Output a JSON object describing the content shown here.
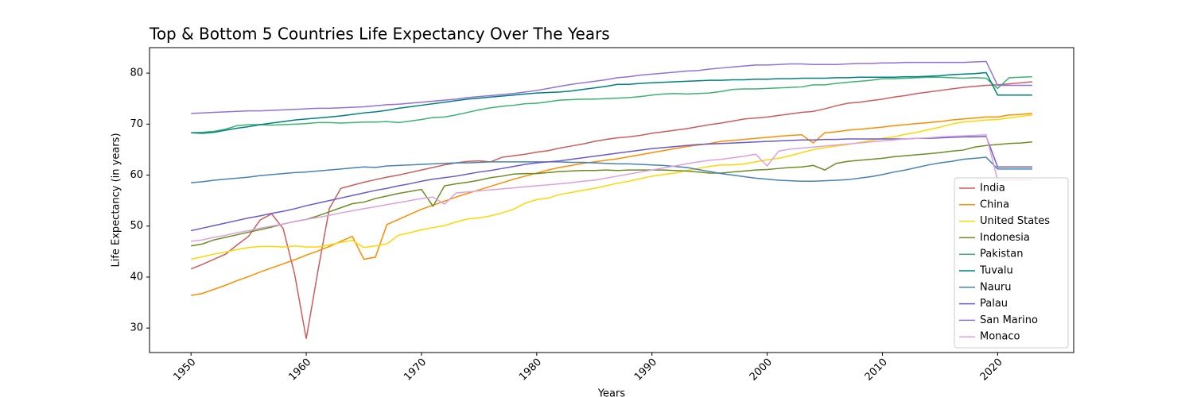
{
  "chart_data": {
    "type": "line",
    "title": "Top & Bottom 5 Countries Life Expectancy Over The Years",
    "x_label": "Years",
    "y_label": "Life Expectancy (in years)",
    "x": [
      1950,
      1951,
      1952,
      1953,
      1954,
      1955,
      1956,
      1957,
      1958,
      1959,
      1960,
      1961,
      1962,
      1963,
      1964,
      1965,
      1966,
      1967,
      1968,
      1969,
      1970,
      1971,
      1972,
      1973,
      1974,
      1975,
      1976,
      1977,
      1978,
      1979,
      1980,
      1981,
      1982,
      1983,
      1984,
      1985,
      1986,
      1987,
      1988,
      1989,
      1990,
      1991,
      1992,
      1993,
      1994,
      1995,
      1996,
      1997,
      1998,
      1999,
      2000,
      2001,
      2002,
      2003,
      2004,
      2005,
      2006,
      2007,
      2008,
      2009,
      2010,
      2011,
      2012,
      2013,
      2014,
      2015,
      2016,
      2017,
      2018,
      2019,
      2020,
      2021,
      2022,
      2023
    ],
    "xlim": [
      1946.4,
      2026.6
    ],
    "xticks": [
      1950,
      1960,
      1970,
      1980,
      1990,
      2000,
      2010,
      2020
    ],
    "ylim": [
      25.2,
      85.0
    ],
    "yticks": [
      30,
      40,
      50,
      60,
      70,
      80
    ],
    "legend_position": "lower right",
    "series": [
      {
        "name": "India",
        "color": "#cd5c5c",
        "values": [
          41.6,
          42.5,
          43.5,
          44.5,
          46.3,
          48,
          51.2,
          52.4,
          49.5,
          40.5,
          27.9,
          41,
          53.4,
          57.4,
          58,
          58.6,
          59.1,
          59.6,
          60,
          60.5,
          61,
          61.5,
          62,
          62.4,
          62.7,
          62.8,
          62.6,
          63.5,
          63.8,
          64.1,
          64.5,
          64.8,
          65.3,
          65.7,
          66.1,
          66.6,
          67,
          67.3,
          67.5,
          67.8,
          68.2,
          68.5,
          68.8,
          69.1,
          69.5,
          69.9,
          70.2,
          70.6,
          71,
          71.2,
          71.4,
          71.7,
          72,
          72.3,
          72.5,
          73,
          73.6,
          74.1,
          74.3,
          74.6,
          74.9,
          75.3,
          75.6,
          76,
          76.3,
          76.6,
          76.9,
          77.2,
          77.4,
          77.6,
          77.7,
          77.9,
          78.1,
          78.3
        ]
      },
      {
        "name": "China",
        "color": "#ff8c00",
        "values": [
          36.4,
          36.8,
          37.6,
          38.4,
          39.3,
          40.1,
          41,
          41.8,
          42.6,
          43.4,
          44.3,
          45.1,
          46,
          47,
          48,
          43.5,
          43.9,
          50.3,
          51.3,
          52.3,
          53.3,
          54.1,
          54.9,
          55.7,
          56.4,
          57.1,
          57.8,
          58.5,
          59.2,
          59.8,
          60.4,
          61,
          61.5,
          61.9,
          62.3,
          62.6,
          62.9,
          63.2,
          63.6,
          64,
          64.4,
          64.8,
          65.2,
          65.6,
          65.9,
          66.2,
          66.6,
          66.8,
          67,
          67.2,
          67.4,
          67.6,
          67.8,
          67.9,
          66.3,
          68.3,
          68.5,
          68.8,
          69,
          69.2,
          69.4,
          69.7,
          69.9,
          70.1,
          70.3,
          70.5,
          70.8,
          71,
          71.2,
          71.4,
          71.4,
          71.8,
          71.9,
          72.1
        ]
      },
      {
        "name": "United States",
        "color": "#ffd700",
        "values": [
          43.5,
          44,
          44.5,
          44.9,
          45.4,
          45.8,
          46,
          46,
          45.9,
          46.1,
          45.9,
          45.9,
          46.3,
          46.8,
          47.2,
          45.8,
          46.1,
          46.5,
          48.2,
          48.7,
          49.3,
          49.7,
          50.1,
          50.8,
          51.4,
          51.6,
          52,
          52.6,
          53.3,
          54.5,
          55.2,
          55.5,
          56.2,
          56.6,
          57,
          57.4,
          57.9,
          58.4,
          58.8,
          59.3,
          59.8,
          60.1,
          60.4,
          60.9,
          61.3,
          61.7,
          62,
          62,
          62.2,
          62.6,
          63,
          63.3,
          63.8,
          64.4,
          65,
          65.4,
          65.7,
          66,
          66.4,
          66.8,
          67.2,
          67.5,
          68,
          68.4,
          68.9,
          69.4,
          70,
          70.4,
          70.6,
          70.8,
          70.9,
          71.2,
          71.5,
          71.8
        ]
      },
      {
        "name": "Indonesia",
        "color": "#6b8e23",
        "values": [
          46.1,
          46.5,
          47.3,
          47.8,
          48.3,
          48.8,
          49.3,
          49.8,
          50.4,
          50.9,
          51.3,
          52,
          52.8,
          53.6,
          54.4,
          54.7,
          55.4,
          55.9,
          56.4,
          56.8,
          57.2,
          53.9,
          57.9,
          58.3,
          58.6,
          59,
          59.5,
          59.8,
          60.2,
          60.3,
          60.3,
          60.5,
          60.7,
          60.8,
          60.9,
          60.9,
          61,
          60.9,
          61,
          61,
          61,
          61,
          60.9,
          60.8,
          60.6,
          60.4,
          60.4,
          60.6,
          60.8,
          61,
          61.1,
          61.3,
          61.5,
          61.6,
          61.9,
          61,
          62.3,
          62.7,
          62.9,
          63.1,
          63.3,
          63.6,
          63.8,
          64,
          64.2,
          64.4,
          64.7,
          64.9,
          65.5,
          65.8,
          66,
          66.2,
          66.3,
          66.5
        ]
      },
      {
        "name": "Pakistan",
        "color": "#3cb371",
        "values": [
          68.3,
          68.4,
          68.6,
          69,
          69.7,
          69.9,
          69.9,
          69.8,
          69.9,
          70,
          70.1,
          70.3,
          70.3,
          70.2,
          70.3,
          70.4,
          70.4,
          70.5,
          70.3,
          70.6,
          70.9,
          71.3,
          71.4,
          71.8,
          72.3,
          72.8,
          73.2,
          73.5,
          73.7,
          74,
          74.1,
          74.4,
          74.7,
          74.8,
          74.9,
          74.9,
          75,
          75.1,
          75.2,
          75.4,
          75.7,
          75.9,
          76,
          75.9,
          76,
          76.1,
          76.4,
          76.8,
          76.9,
          76.9,
          77,
          77.1,
          77.2,
          77.3,
          77.7,
          77.7,
          78,
          78.2,
          78.4,
          78.6,
          78.9,
          78.9,
          79,
          79.1,
          79.2,
          79.2,
          79.1,
          79,
          79.1,
          79,
          77,
          79.1,
          79.2,
          79.3
        ]
      },
      {
        "name": "Tuvalu",
        "color": "#008080",
        "values": [
          68.3,
          68.2,
          68.4,
          68.8,
          69.2,
          69.5,
          69.9,
          70.2,
          70.5,
          70.8,
          71,
          71.2,
          71.4,
          71.6,
          71.9,
          72.2,
          72.4,
          72.7,
          73.1,
          73.4,
          73.7,
          74,
          74.3,
          74.6,
          74.9,
          75.1,
          75.3,
          75.5,
          75.7,
          75.9,
          76.1,
          76.2,
          76.3,
          76.5,
          76.8,
          77.1,
          77.4,
          77.8,
          77.8,
          78,
          78.1,
          78.2,
          78.3,
          78.4,
          78.5,
          78.6,
          78.6,
          78.7,
          78.7,
          78.8,
          78.8,
          78.9,
          78.9,
          79,
          79,
          79,
          79.1,
          79.1,
          79.2,
          79.2,
          79.2,
          79.2,
          79.3,
          79.3,
          79.4,
          79.5,
          79.7,
          79.8,
          79.9,
          80.1,
          75.7,
          75.7,
          75.7,
          75.7
        ]
      },
      {
        "name": "Nauru",
        "color": "#4682b4",
        "values": [
          58.5,
          58.7,
          59,
          59.2,
          59.4,
          59.6,
          59.9,
          60.1,
          60.3,
          60.5,
          60.6,
          60.8,
          61,
          61.2,
          61.4,
          61.6,
          61.5,
          61.8,
          61.9,
          62,
          62.1,
          62.2,
          62.3,
          62.4,
          62.4,
          62.5,
          62.6,
          62.6,
          62.6,
          62.6,
          62.6,
          62.6,
          62.6,
          62.5,
          62.5,
          62.4,
          62.3,
          62.2,
          62.2,
          62.1,
          62,
          61.9,
          61.7,
          61.5,
          61.1,
          60.7,
          60.3,
          60,
          59.7,
          59.4,
          59.2,
          59,
          58.9,
          58.8,
          58.8,
          58.9,
          59,
          59.1,
          59.4,
          59.7,
          60.1,
          60.6,
          61,
          61.5,
          62,
          62.4,
          62.7,
          63.1,
          63.3,
          63.5,
          61.2,
          61.2,
          61.2,
          61.2
        ]
      },
      {
        "name": "Palau",
        "color": "#6a5acd",
        "values": [
          49.1,
          49.6,
          50.1,
          50.6,
          51.1,
          51.6,
          52,
          52.5,
          52.9,
          53.4,
          54,
          54.5,
          55,
          55.5,
          56,
          56.5,
          57,
          57.4,
          57.9,
          58.3,
          58.8,
          59.2,
          59.5,
          59.8,
          60.2,
          60.6,
          60.9,
          61.3,
          61.7,
          62.1,
          62.4,
          62.6,
          62.8,
          63.1,
          63.4,
          63.7,
          64,
          64.3,
          64.6,
          64.9,
          65.2,
          65.4,
          65.6,
          65.8,
          66,
          66.1,
          66.2,
          66.3,
          66.4,
          66.5,
          66.6,
          66.7,
          66.8,
          66.9,
          66.9,
          67,
          67,
          67.1,
          67.1,
          67.1,
          67.1,
          67.1,
          67.1,
          67.2,
          67.2,
          67.3,
          67.4,
          67.5,
          67.5,
          67.6,
          61.6,
          61.6,
          61.6,
          61.6
        ]
      },
      {
        "name": "San Marino",
        "color": "#9370db",
        "values": [
          72.1,
          72.2,
          72.3,
          72.4,
          72.5,
          72.6,
          72.6,
          72.7,
          72.8,
          72.9,
          73,
          73.1,
          73.1,
          73.2,
          73.3,
          73.4,
          73.6,
          73.8,
          73.9,
          74.1,
          74.3,
          74.5,
          74.7,
          74.9,
          75.2,
          75.4,
          75.6,
          75.8,
          76,
          76.3,
          76.6,
          77,
          77.4,
          77.8,
          78.1,
          78.4,
          78.7,
          79.1,
          79.3,
          79.6,
          79.8,
          80,
          80.2,
          80.4,
          80.5,
          80.8,
          81,
          81.2,
          81.4,
          81.6,
          81.6,
          81.7,
          81.8,
          81.8,
          81.7,
          81.7,
          81.7,
          81.8,
          81.9,
          81.9,
          82,
          82,
          82.1,
          82.1,
          82.1,
          82.1,
          82.1,
          82.1,
          82.2,
          82.3,
          77.6,
          77.6,
          77.6,
          77.6
        ]
      },
      {
        "name": "Monaco",
        "color": "#dda0dd",
        "values": [
          47,
          47.3,
          47.8,
          48.2,
          48.7,
          49.1,
          49.6,
          50,
          50.4,
          50.9,
          51.3,
          51.7,
          52.1,
          52.6,
          53,
          53.4,
          53.8,
          54.2,
          54.6,
          55,
          55.4,
          55.7,
          54.3,
          56.5,
          56.7,
          56.9,
          57.1,
          57.3,
          57.5,
          57.7,
          57.9,
          58.1,
          58.3,
          58.5,
          58.8,
          59,
          59.4,
          59.8,
          60.2,
          60.6,
          61,
          61.4,
          61.8,
          62.2,
          62.6,
          62.9,
          63.1,
          63.4,
          63.7,
          64.1,
          61.8,
          64.7,
          65.1,
          65.3,
          65.5,
          65.7,
          65.9,
          66.1,
          66.3,
          66.5,
          66.7,
          66.9,
          67.1,
          67.2,
          67.3,
          67.5,
          67.6,
          67.7,
          67.8,
          67.9,
          59,
          59,
          59,
          59
        ]
      }
    ]
  }
}
